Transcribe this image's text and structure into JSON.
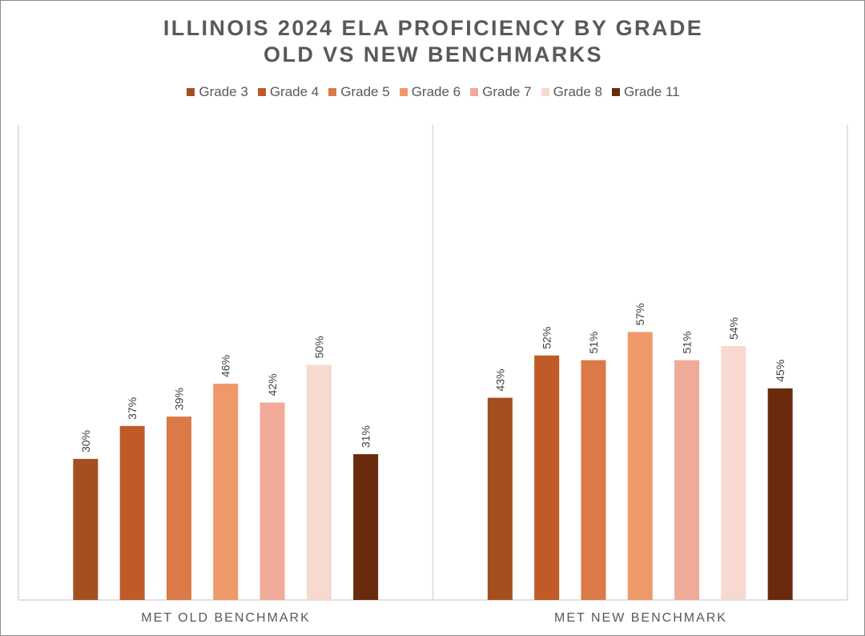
{
  "chart_data": {
    "type": "bar",
    "title_lines": [
      "ILLINOIS 2024 ELA PROFICIENCY BY GRADE",
      "OLD VS NEW BENCHMARKS"
    ],
    "categories": [
      "MET OLD BENCHMARK",
      "MET NEW BENCHMARK"
    ],
    "series": [
      {
        "name": "Grade 3",
        "color": "#a34f20",
        "values": [
          30,
          43
        ]
      },
      {
        "name": "Grade 4",
        "color": "#c05a27",
        "values": [
          37,
          52
        ]
      },
      {
        "name": "Grade 5",
        "color": "#db7a48",
        "values": [
          39,
          51
        ]
      },
      {
        "name": "Grade 6",
        "color": "#ef996b",
        "values": [
          46,
          57
        ]
      },
      {
        "name": "Grade 7",
        "color": "#f0ab98",
        "values": [
          42,
          51
        ]
      },
      {
        "name": "Grade 8",
        "color": "#f7d9d0",
        "values": [
          50,
          54
        ]
      },
      {
        "name": "Grade 11",
        "color": "#6a2a0d",
        "values": [
          31,
          45
        ]
      }
    ],
    "value_suffix": "%",
    "ylim": [
      0,
      100
    ],
    "legend_position": "top",
    "grid": false,
    "colors": {
      "text": "#595959",
      "axis": "#d9d9d9",
      "border": "#8c8c8c"
    }
  }
}
